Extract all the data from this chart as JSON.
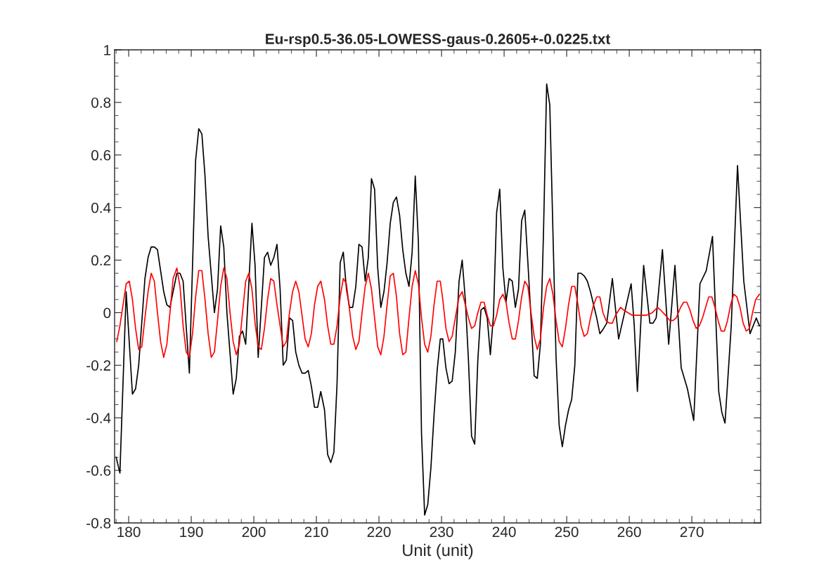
{
  "chart_data": {
    "type": "line",
    "title": "Eu-rsp0.5-36.05-LOWESS-gaus-0.2605+-0.0225.txt",
    "xlabel": "Unit (unit)",
    "xlim": [
      177.75,
      281
    ],
    "ylim": [
      -0.8,
      1
    ],
    "xticks": [
      180,
      190,
      200,
      210,
      220,
      230,
      240,
      250,
      260,
      270
    ],
    "yticks": [
      -0.8,
      -0.6,
      -0.4,
      -0.2,
      0,
      0.2,
      0.4,
      0.6,
      0.8,
      1
    ],
    "grid": false,
    "legend": false,
    "marker": "none",
    "line_style": "solid",
    "series": [
      {
        "color": "#000000",
        "x": [
          178,
          178.6,
          179.6,
          180.6,
          181.1,
          181.6,
          182.6,
          183.1,
          183.6,
          184.1,
          184.6,
          185.1,
          185.6,
          186.1,
          186.6,
          187.1,
          187.7,
          188.2,
          188.7,
          189.7,
          190.7,
          191.2,
          191.7,
          192.2,
          192.7,
          193.7,
          194.2,
          194.7,
          195.2,
          195.7,
          196.7,
          197.2,
          197.7,
          198.2,
          198.7,
          199.7,
          200.2,
          200.7,
          201.7,
          202.2,
          202.7,
          203.2,
          203.7,
          204.2,
          204.7,
          205.2,
          205.7,
          206.2,
          206.7,
          207.2,
          207.7,
          208.2,
          208.7,
          209.2,
          209.7,
          210.2,
          210.7,
          211.3,
          211.8,
          212.3,
          212.8,
          213.3,
          213.8,
          214.3,
          214.8,
          215.3,
          215.8,
          216.3,
          216.8,
          217.3,
          217.8,
          218.3,
          218.8,
          219.3,
          219.8,
          220.3,
          220.8,
          221.3,
          221.8,
          222.3,
          222.8,
          223.3,
          223.8,
          224.3,
          224.8,
          225.3,
          225.8,
          226.3,
          226.8,
          227.3,
          227.8,
          228.3,
          228.8,
          229.3,
          229.8,
          230.2,
          230.7,
          231.2,
          231.7,
          232.2,
          232.8,
          233.3,
          233.8,
          234.3,
          234.8,
          235.3,
          235.8,
          236.3,
          236.8,
          237.3,
          237.8,
          238.3,
          238.8,
          239.3,
          239.8,
          240.3,
          240.8,
          241.3,
          241.8,
          242.3,
          242.8,
          243.3,
          243.8,
          244.3,
          244.8,
          245.3,
          245.8,
          246.3,
          246.8,
          247.3,
          247.8,
          248.3,
          248.8,
          249.3,
          249.8,
          250.3,
          250.8,
          251.3,
          251.8,
          252.3,
          252.8,
          253.3,
          253.8,
          254.3,
          254.8,
          255.3,
          255.9,
          256.4,
          257.3,
          258.3,
          260.3,
          260.8,
          261.3,
          262.3,
          263.3,
          263.8,
          264.3,
          265.3,
          266.3,
          267.3,
          268.3,
          269.3,
          270.3,
          271.3,
          272.3,
          273.3,
          274.3,
          274.8,
          275.3,
          276.3,
          277.3,
          278.3,
          279.3,
          280.3,
          280.8
        ],
        "values": [
          -0.55,
          -0.61,
          0.08,
          -0.31,
          -0.29,
          -0.2,
          0.13,
          0.21,
          0.25,
          0.25,
          0.24,
          0.16,
          0.08,
          0.03,
          0.02,
          0.08,
          0.15,
          0.15,
          0.12,
          -0.23,
          0.58,
          0.7,
          0.68,
          0.52,
          0.29,
          0.0,
          0.09,
          0.33,
          0.25,
          0.0,
          -0.31,
          -0.25,
          -0.09,
          -0.07,
          -0.12,
          0.34,
          0.18,
          -0.17,
          0.21,
          0.23,
          0.18,
          0.21,
          0.26,
          0.09,
          -0.2,
          -0.18,
          -0.02,
          -0.03,
          -0.15,
          -0.2,
          -0.23,
          -0.23,
          -0.22,
          -0.28,
          -0.36,
          -0.36,
          -0.3,
          -0.37,
          -0.54,
          -0.57,
          -0.53,
          -0.27,
          0.19,
          0.23,
          0.09,
          0.02,
          0.02,
          0.1,
          0.26,
          0.25,
          0.12,
          0.21,
          0.51,
          0.47,
          0.17,
          0.02,
          0.08,
          0.19,
          0.34,
          0.42,
          0.44,
          0.37,
          0.24,
          0.15,
          0.1,
          0.23,
          0.52,
          0.27,
          -0.46,
          -0.77,
          -0.73,
          -0.59,
          -0.39,
          -0.22,
          -0.1,
          -0.1,
          -0.21,
          -0.27,
          -0.26,
          -0.15,
          0.12,
          0.2,
          0.05,
          -0.18,
          -0.47,
          -0.5,
          -0.18,
          0.01,
          0.02,
          -0.02,
          -0.16,
          -0.01,
          0.38,
          0.47,
          0.17,
          0.04,
          0.13,
          0.12,
          0.02,
          0.09,
          0.35,
          0.39,
          0.19,
          -0.02,
          -0.24,
          -0.25,
          -0.12,
          0.31,
          0.87,
          0.79,
          0.31,
          -0.17,
          -0.43,
          -0.51,
          -0.43,
          -0.37,
          -0.33,
          -0.2,
          0.15,
          0.15,
          0.14,
          0.12,
          0.08,
          0.03,
          -0.02,
          -0.08,
          -0.06,
          -0.04,
          0.13,
          -0.1,
          0.11,
          -0.05,
          -0.3,
          0.18,
          -0.04,
          -0.04,
          -0.02,
          0.24,
          -0.12,
          0.18,
          -0.21,
          -0.29,
          -0.41,
          0.11,
          0.16,
          0.29,
          -0.3,
          -0.38,
          -0.42,
          -0.05,
          0.56,
          0.12,
          -0.08,
          -0.02,
          -0.05
        ]
      },
      {
        "color": "#ff0000",
        "x": [
          178.1,
          178.6,
          179.6,
          180.1,
          180.6,
          181.1,
          181.6,
          182.1,
          182.6,
          183.1,
          183.6,
          184.1,
          184.6,
          185.1,
          185.6,
          186.1,
          186.6,
          187.1,
          187.7,
          188.2,
          188.7,
          189.2,
          189.7,
          190.2,
          190.7,
          191.2,
          191.7,
          192.2,
          192.7,
          193.2,
          193.7,
          194.2,
          194.7,
          195.2,
          195.7,
          196.2,
          196.7,
          197.2,
          197.7,
          198.2,
          198.7,
          199.2,
          199.7,
          200.2,
          200.7,
          201.2,
          201.7,
          202.2,
          202.7,
          203.2,
          203.7,
          204.2,
          204.7,
          205.2,
          205.7,
          206.2,
          206.7,
          207.2,
          207.7,
          208.2,
          208.7,
          209.2,
          209.7,
          210.2,
          210.7,
          211.3,
          211.8,
          212.3,
          212.8,
          213.3,
          213.8,
          214.3,
          214.8,
          215.3,
          215.8,
          216.3,
          216.8,
          217.3,
          217.8,
          218.3,
          218.8,
          219.3,
          219.8,
          220.3,
          220.8,
          221.3,
          221.8,
          222.3,
          222.8,
          223.3,
          223.8,
          224.3,
          224.8,
          225.3,
          225.8,
          226.3,
          226.8,
          227.3,
          227.8,
          228.3,
          228.8,
          229.3,
          229.8,
          230.2,
          230.7,
          231.2,
          231.7,
          232.2,
          232.8,
          233.3,
          233.8,
          234.3,
          234.8,
          235.3,
          235.8,
          236.3,
          236.8,
          237.3,
          237.8,
          238.3,
          238.8,
          239.3,
          239.8,
          240.3,
          240.8,
          241.3,
          241.8,
          242.3,
          242.8,
          243.3,
          243.8,
          244.3,
          244.8,
          245.3,
          245.8,
          246.3,
          246.8,
          247.3,
          247.8,
          248.3,
          248.8,
          249.3,
          249.8,
          250.3,
          250.8,
          251.3,
          251.8,
          252.3,
          252.8,
          253.3,
          253.8,
          254.3,
          254.8,
          255.3,
          255.8,
          256.3,
          256.8,
          257.3,
          257.8,
          258.6,
          259.1,
          259.8,
          260.5,
          261.5,
          262.7,
          263.7,
          264.5,
          265.0,
          265.8,
          266.5,
          267.0,
          267.5,
          268.2,
          268.7,
          269.2,
          269.7,
          270.2,
          270.7,
          271.2,
          271.7,
          272.2,
          272.7,
          273.2,
          273.7,
          274.2,
          274.7,
          275.2,
          275.7,
          276.2,
          276.7,
          277.2,
          277.7,
          278.2,
          278.7,
          279.2,
          279.7,
          280.2,
          280.8
        ],
        "values": [
          -0.11,
          -0.05,
          0.11,
          0.12,
          0.05,
          -0.06,
          -0.14,
          -0.13,
          -0.02,
          0.08,
          0.15,
          0.12,
          0.0,
          -0.11,
          -0.17,
          -0.12,
          0.0,
          0.13,
          0.17,
          0.1,
          -0.05,
          -0.15,
          -0.17,
          -0.08,
          0.06,
          0.16,
          0.16,
          0.05,
          -0.08,
          -0.17,
          -0.15,
          -0.03,
          0.1,
          0.17,
          0.13,
          0.0,
          -0.11,
          -0.16,
          -0.12,
          0.0,
          0.12,
          0.15,
          0.09,
          -0.04,
          -0.13,
          -0.14,
          -0.06,
          0.05,
          0.13,
          0.12,
          0.03,
          -0.05,
          -0.13,
          -0.11,
          0.0,
          0.08,
          0.12,
          0.08,
          -0.01,
          -0.1,
          -0.13,
          -0.08,
          0.03,
          0.1,
          0.12,
          0.05,
          -0.05,
          -0.12,
          -0.12,
          -0.05,
          0.06,
          0.13,
          0.11,
          0.01,
          -0.09,
          -0.14,
          -0.11,
          0.0,
          0.1,
          0.15,
          0.09,
          -0.02,
          -0.13,
          -0.16,
          -0.09,
          0.03,
          0.14,
          0.15,
          0.06,
          -0.08,
          -0.16,
          -0.15,
          -0.02,
          0.1,
          0.16,
          0.11,
          -0.02,
          -0.12,
          -0.15,
          -0.09,
          0.03,
          0.12,
          0.12,
          0.05,
          -0.06,
          -0.11,
          -0.09,
          -0.02,
          0.06,
          0.08,
          0.03,
          -0.02,
          -0.06,
          -0.05,
          0.0,
          0.04,
          0.04,
          -0.01,
          -0.05,
          -0.05,
          -0.01,
          0.05,
          0.07,
          0.04,
          -0.04,
          -0.1,
          -0.1,
          -0.03,
          0.06,
          0.12,
          0.1,
          0.0,
          -0.09,
          -0.14,
          -0.1,
          0.02,
          0.1,
          0.13,
          0.07,
          -0.03,
          -0.11,
          -0.13,
          -0.06,
          0.03,
          0.1,
          0.1,
          0.03,
          -0.05,
          -0.09,
          -0.08,
          -0.02,
          0.03,
          0.06,
          0.06,
          0.0,
          -0.03,
          -0.04,
          -0.04,
          -0.01,
          0.02,
          0.01,
          0.0,
          -0.01,
          -0.01,
          -0.01,
          0.0,
          0.02,
          0.01,
          -0.01,
          -0.03,
          -0.03,
          -0.02,
          0.02,
          0.04,
          0.04,
          0.01,
          -0.03,
          -0.06,
          -0.05,
          -0.02,
          0.02,
          0.06,
          0.06,
          0.02,
          -0.03,
          -0.07,
          -0.07,
          -0.03,
          0.03,
          0.07,
          0.06,
          0.02,
          -0.04,
          -0.07,
          -0.06,
          0.0,
          0.05,
          0.07
        ]
      }
    ]
  }
}
